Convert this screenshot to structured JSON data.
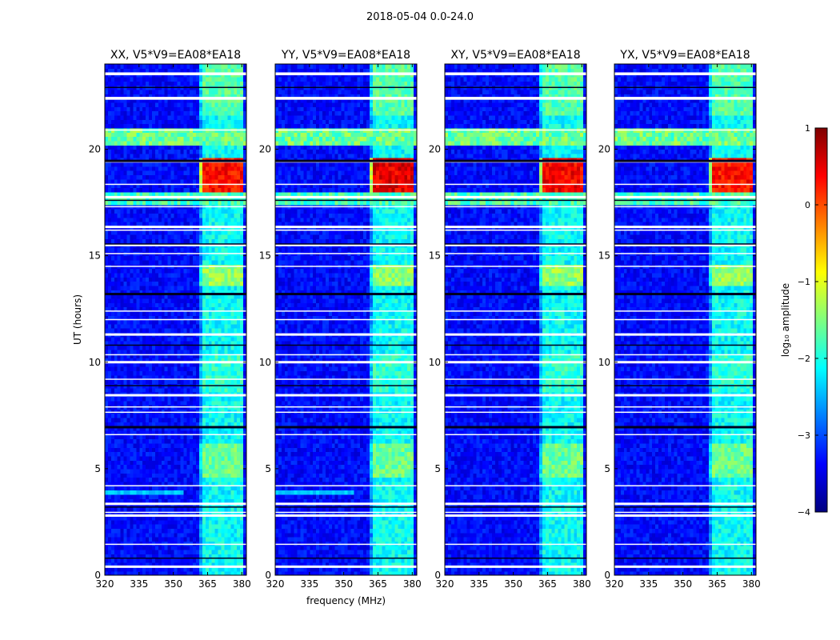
{
  "figure": {
    "suptitle": "2018-05-04 0.0-24.0"
  },
  "colorbar": {
    "label": "log₁₀ amplitude",
    "range": [
      -4,
      1
    ],
    "ticks": [
      "1",
      "0",
      "−1",
      "−2",
      "−3",
      "−4"
    ],
    "tick_values": [
      1,
      0,
      -1,
      -2,
      -3,
      -4
    ],
    "colormap": "jet",
    "colors": [
      "#00007f",
      "#0000ff",
      "#007fff",
      "#00ffff",
      "#7fff7f",
      "#ffff00",
      "#ff7f00",
      "#ff0000",
      "#7f0000"
    ]
  },
  "chart_data": [
    {
      "type": "heatmap",
      "title": "XX, V5*V9=EA08*EA18",
      "xlabel": "",
      "ylabel": "UT (hours)",
      "xlim": [
        320,
        382
      ],
      "ylim": [
        0,
        24
      ],
      "xticks": [
        "320",
        "335",
        "350",
        "365",
        "380"
      ],
      "yticks": [
        "0",
        "5",
        "10",
        "15",
        "20"
      ],
      "peak_band_mhz": [
        362,
        380
      ],
      "peak_window_ut": [
        18.0,
        19.5
      ],
      "peak_log_amplitude": 0.6
    },
    {
      "type": "heatmap",
      "title": "YY, V5*V9=EA08*EA18",
      "xlabel": "frequency (MHz)",
      "ylabel": "",
      "xlim": [
        320,
        382
      ],
      "ylim": [
        0,
        24
      ],
      "xticks": [
        "320",
        "335",
        "350",
        "365",
        "380"
      ],
      "yticks": [
        "0",
        "5",
        "10",
        "15",
        "20"
      ],
      "peak_band_mhz": [
        362,
        380
      ],
      "peak_window_ut": [
        18.0,
        19.5
      ],
      "peak_log_amplitude": 0.8
    },
    {
      "type": "heatmap",
      "title": "XY, V5*V9=EA08*EA18",
      "xlabel": "",
      "ylabel": "",
      "xlim": [
        320,
        382
      ],
      "ylim": [
        0,
        24
      ],
      "xticks": [
        "320",
        "335",
        "350",
        "365",
        "380"
      ],
      "yticks": [
        "0",
        "5",
        "10",
        "15",
        "20"
      ],
      "peak_band_mhz": [
        362,
        380
      ],
      "peak_window_ut": [
        18.0,
        19.5
      ],
      "peak_log_amplitude": 0.7
    },
    {
      "type": "heatmap",
      "title": "YX, V5*V9=EA08*EA18",
      "xlabel": "",
      "ylabel": "",
      "xlim": [
        320,
        382
      ],
      "ylim": [
        0,
        24
      ],
      "xticks": [
        "320",
        "335",
        "350",
        "365",
        "380"
      ],
      "yticks": [
        "0",
        "5",
        "10",
        "15",
        "20"
      ],
      "peak_band_mhz": [
        362,
        380
      ],
      "peak_window_ut": [
        18.0,
        19.5
      ],
      "peak_log_amplitude": 0.6
    }
  ],
  "flagged_rows_ut": [
    0.4,
    0.8,
    1.45,
    2.8,
    2.95,
    3.2,
    3.35,
    4.2,
    6.6,
    6.95,
    7.65,
    7.9,
    8.45,
    8.9,
    9.2,
    10.0,
    10.35,
    10.8,
    11.3,
    12.0,
    12.4,
    13.2,
    14.5,
    15.1,
    15.5,
    15.55,
    16.2,
    16.35,
    17.3,
    17.6,
    17.75,
    18.35,
    19.4,
    19.45,
    20.9,
    22.35,
    22.4,
    22.9,
    23.5,
    23.55
  ],
  "rfi_channels_mhz": [
    364,
    365.5,
    367,
    368.5,
    370,
    371.5,
    373,
    374.5,
    376,
    377.5,
    379,
    380.5
  ],
  "event_rows_ut": [
    20.6,
    17.7
  ],
  "event_rows_log_amplitude": [
    -1.6,
    -1.8
  ],
  "event_rows_ut_spread": [
    0.15,
    0.12
  ]
}
